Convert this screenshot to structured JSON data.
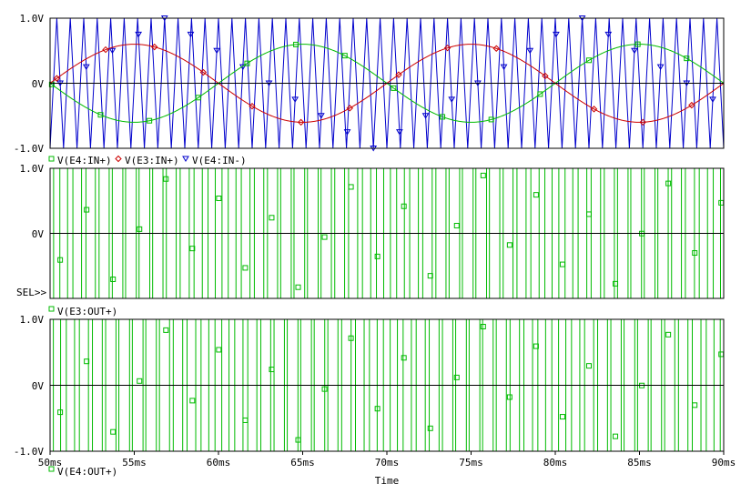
{
  "x_axis": {
    "label": "Time",
    "range_ms": [
      50,
      90
    ],
    "tick_labels": [
      "50ms",
      "55ms",
      "60ms",
      "65ms",
      "70ms",
      "75ms",
      "80ms",
      "85ms",
      "90ms"
    ]
  },
  "selection_marker": "SEL>>",
  "colors": {
    "blue": "#0000cc",
    "red": "#cc0000",
    "green": "#00bb00",
    "axis": "#000000",
    "zero_line": "#000000"
  },
  "chart_data": [
    {
      "type": "line",
      "ylim": [
        -1.0,
        1.0
      ],
      "y_tick_labels": [
        "1.0V",
        "0V",
        "-1.0V"
      ],
      "legend": [
        {
          "label": "V(E4:IN+)",
          "symbol": "square",
          "color": "#00bb00"
        },
        {
          "label": "V(E3:IN+)",
          "symbol": "diamond",
          "color": "#cc0000"
        },
        {
          "label": "V(E4:IN-)",
          "symbol": "triangle",
          "color": "#0000cc"
        }
      ],
      "series": [
        {
          "name": "V(E4:IN+)",
          "color": "#00bb00",
          "marker": "square",
          "kind": "sine",
          "amplitude": 0.6,
          "period_ms": 20,
          "zero_cross_ms": 50,
          "phase": "falling"
        },
        {
          "name": "V(E3:IN+)",
          "color": "#cc0000",
          "marker": "diamond",
          "kind": "sine",
          "amplitude": 0.6,
          "period_ms": 20,
          "zero_cross_ms": 50,
          "phase": "rising"
        },
        {
          "name": "V(E4:IN-)",
          "color": "#0000cc",
          "marker": "triangle",
          "kind": "triangle",
          "amplitude": 1.0,
          "period_ms": 0.8
        }
      ]
    },
    {
      "type": "line",
      "ylim": [
        -1.0,
        1.0
      ],
      "y_tick_labels": [
        "1.0V",
        "0V",
        ""
      ],
      "legend": [
        {
          "label": "V(E3:OUT+)",
          "symbol": "square",
          "color": "#00bb00"
        }
      ],
      "series": [
        {
          "name": "V(E3:OUT+)",
          "color": "#00bb00",
          "marker": "square",
          "kind": "pwm",
          "high": 1.0,
          "low": -1.0,
          "carrier_period_ms": 0.8,
          "modulation": "V(E3:IN+)"
        }
      ]
    },
    {
      "type": "line",
      "ylim": [
        -1.0,
        1.0
      ],
      "y_tick_labels": [
        "1.0V",
        "0V",
        "-1.0V"
      ],
      "legend": [
        {
          "label": "V(E4:OUT+)",
          "symbol": "square",
          "color": "#00bb00"
        }
      ],
      "series": [
        {
          "name": "V(E4:OUT+)",
          "color": "#00bb00",
          "marker": "square",
          "kind": "pwm",
          "high": 1.0,
          "low": -1.0,
          "carrier_period_ms": 0.8,
          "modulation": "V(E4:IN+)"
        }
      ]
    }
  ]
}
